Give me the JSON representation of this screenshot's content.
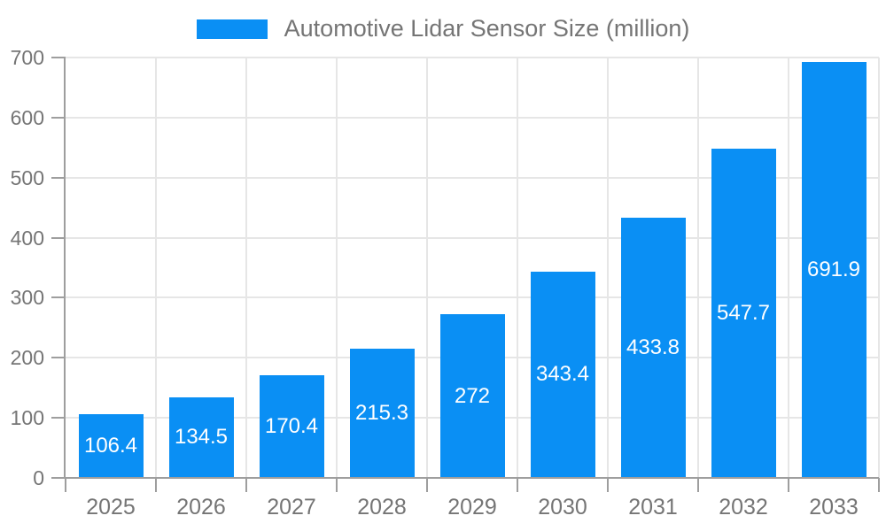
{
  "chart_data": {
    "type": "bar",
    "title": "Automotive Lidar Sensor Size (million)",
    "legend": [
      "Automotive Lidar Sensor Size (million)"
    ],
    "legend_position": "top",
    "categories": [
      "2025",
      "2026",
      "2027",
      "2028",
      "2029",
      "2030",
      "2031",
      "2032",
      "2033"
    ],
    "values": [
      106.4,
      134.5,
      170.4,
      215.3,
      272,
      343.4,
      433.8,
      547.7,
      691.9
    ],
    "value_labels": [
      "106.4",
      "134.5",
      "170.4",
      "215.3",
      "272",
      "343.4",
      "433.8",
      "547.7",
      "691.9"
    ],
    "xlabel": "",
    "ylabel": "",
    "ylim": [
      0,
      700
    ],
    "ytick_step": 100,
    "ytick_labels": [
      "0",
      "100",
      "200",
      "300",
      "400",
      "500",
      "600",
      "700"
    ],
    "grid": true,
    "colors": {
      "bar": "#0A8FF4",
      "bar_value_text": "#ffffff",
      "axis": "#9e9e9e",
      "grid": "#e6e6e6",
      "tick_text": "#757575",
      "legend_text": "#757575",
      "background": "#ffffff"
    }
  }
}
